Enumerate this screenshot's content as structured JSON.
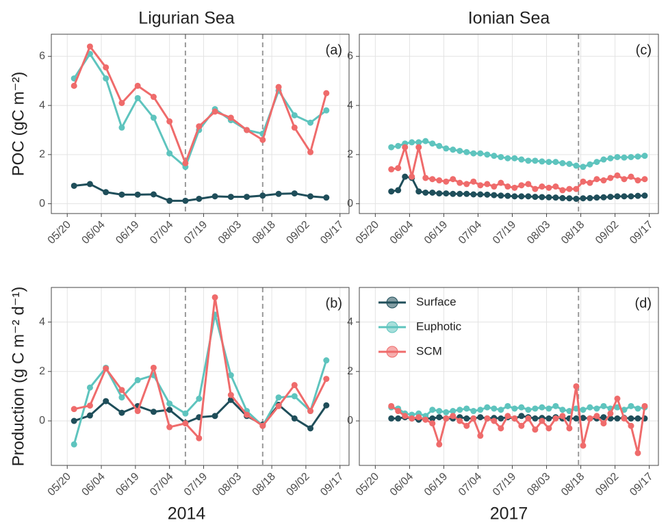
{
  "chart_data": [
    {
      "type": "line",
      "title": "Ligurian Sea",
      "y_label": "POC (gC m⁻²)",
      "panel_label": "(a)",
      "x": [
        "2014-05-23",
        "2014-05-30",
        "2014-06-06",
        "2014-06-13",
        "2014-06-20",
        "2014-06-27",
        "2014-07-04",
        "2014-07-11",
        "2014-07-17",
        "2014-07-24",
        "2014-07-31",
        "2014-08-07",
        "2014-08-14",
        "2014-08-21",
        "2014-08-28",
        "2014-09-04",
        "2014-09-11"
      ],
      "series": [
        {
          "name": "Surface",
          "color": "#1f4e5a",
          "values": [
            0.73,
            0.8,
            0.47,
            0.37,
            0.37,
            0.38,
            0.12,
            0.12,
            0.2,
            0.3,
            0.28,
            0.28,
            0.33,
            0.4,
            0.42,
            0.3,
            0.25
          ]
        },
        {
          "name": "Euphotic",
          "color": "#5ec4be",
          "values": [
            5.1,
            6.1,
            5.1,
            3.1,
            4.3,
            3.5,
            2.05,
            1.5,
            3.0,
            3.85,
            3.4,
            3.0,
            2.85,
            4.6,
            3.6,
            3.3,
            3.8
          ]
        },
        {
          "name": "SCM",
          "color": "#ef6b6b",
          "values": [
            4.8,
            6.4,
            5.55,
            4.1,
            4.8,
            4.35,
            3.35,
            1.65,
            3.15,
            3.75,
            3.5,
            3.0,
            2.6,
            4.75,
            3.1,
            2.1,
            4.5
          ]
        }
      ],
      "event_lines": [
        "2014-07-11",
        "2014-08-14"
      ],
      "xlim": [
        "2014-05-13",
        "2014-09-21"
      ],
      "xticks": [
        {
          "value": "2014-05-20",
          "label": "05/20"
        },
        {
          "value": "2014-06-04",
          "label": "06/04"
        },
        {
          "value": "2014-06-19",
          "label": "06/19"
        },
        {
          "value": "2014-07-04",
          "label": "07/04"
        },
        {
          "value": "2014-07-19",
          "label": "07/19"
        },
        {
          "value": "2014-08-03",
          "label": "08/03"
        },
        {
          "value": "2014-08-18",
          "label": "08/18"
        },
        {
          "value": "2014-09-02",
          "label": "09/02"
        },
        {
          "value": "2014-09-17",
          "label": "09/17"
        }
      ],
      "ylim": [
        -0.4,
        6.9
      ],
      "yticks": [
        0,
        2,
        4,
        6
      ],
      "grid": true
    },
    {
      "type": "line",
      "y_label": "Production (g C m⁻² d⁻¹)",
      "x_label": "2014",
      "panel_label": "(b)",
      "x": [
        "2014-05-23",
        "2014-05-30",
        "2014-06-06",
        "2014-06-13",
        "2014-06-20",
        "2014-06-27",
        "2014-07-04",
        "2014-07-11",
        "2014-07-17",
        "2014-07-24",
        "2014-07-31",
        "2014-08-07",
        "2014-08-14",
        "2014-08-21",
        "2014-08-28",
        "2014-09-04",
        "2014-09-11"
      ],
      "series": [
        {
          "name": "Surface",
          "color": "#1f4e5a",
          "values": [
            0,
            0.22,
            0.8,
            0.33,
            0.6,
            0.37,
            0.45,
            -0.08,
            0.15,
            0.2,
            0.85,
            0.2,
            -0.15,
            0.65,
            0.1,
            -0.3,
            0.63
          ]
        },
        {
          "name": "Euphotic",
          "color": "#5ec4be",
          "values": [
            -0.95,
            1.35,
            2.15,
            0.95,
            1.65,
            1.85,
            0.7,
            0.3,
            0.9,
            4.3,
            1.85,
            0.4,
            -0.2,
            0.95,
            1.0,
            0.4,
            2.45
          ]
        },
        {
          "name": "SCM",
          "color": "#ef6b6b",
          "values": [
            0.48,
            0.62,
            2.12,
            1.25,
            0.4,
            2.15,
            -0.25,
            -0.1,
            -0.7,
            5.0,
            1.05,
            0.25,
            -0.2,
            0.6,
            1.45,
            0.4,
            1.7
          ]
        }
      ],
      "event_lines": [
        "2014-07-11",
        "2014-08-14"
      ],
      "xlim": [
        "2014-05-13",
        "2014-09-21"
      ],
      "xticks": [
        {
          "value": "2014-05-20",
          "label": "05/20"
        },
        {
          "value": "2014-06-04",
          "label": "06/04"
        },
        {
          "value": "2014-06-19",
          "label": "06/19"
        },
        {
          "value": "2014-07-04",
          "label": "07/04"
        },
        {
          "value": "2014-07-19",
          "label": "07/19"
        },
        {
          "value": "2014-08-03",
          "label": "08/03"
        },
        {
          "value": "2014-08-18",
          "label": "08/18"
        },
        {
          "value": "2014-09-02",
          "label": "09/02"
        },
        {
          "value": "2014-09-17",
          "label": "09/17"
        }
      ],
      "ylim": [
        -1.8,
        5.4
      ],
      "yticks": [
        0,
        2,
        4
      ],
      "grid": true
    },
    {
      "type": "line",
      "title": "Ionian Sea",
      "panel_label": "(c)",
      "x": [
        "2017-05-27",
        "2017-05-30",
        "2017-06-02",
        "2017-06-05",
        "2017-06-08",
        "2017-06-11",
        "2017-06-14",
        "2017-06-17",
        "2017-06-20",
        "2017-06-23",
        "2017-06-26",
        "2017-06-29",
        "2017-07-02",
        "2017-07-05",
        "2017-07-08",
        "2017-07-11",
        "2017-07-14",
        "2017-07-17",
        "2017-07-20",
        "2017-07-23",
        "2017-07-26",
        "2017-07-29",
        "2017-08-01",
        "2017-08-04",
        "2017-08-07",
        "2017-08-10",
        "2017-08-13",
        "2017-08-16",
        "2017-08-19",
        "2017-08-22",
        "2017-08-25",
        "2017-08-28",
        "2017-08-31",
        "2017-09-03",
        "2017-09-06",
        "2017-09-09",
        "2017-09-12",
        "2017-09-15"
      ],
      "series": [
        {
          "name": "Surface",
          "color": "#1f4e5a",
          "values": [
            0.5,
            0.55,
            1.1,
            1.05,
            0.5,
            0.45,
            0.45,
            0.42,
            0.42,
            0.4,
            0.4,
            0.4,
            0.38,
            0.38,
            0.37,
            0.35,
            0.33,
            0.32,
            0.3,
            0.3,
            0.3,
            0.28,
            0.27,
            0.26,
            0.25,
            0.23,
            0.22,
            0.2,
            0.22,
            0.23,
            0.25,
            0.26,
            0.28,
            0.3,
            0.3,
            0.3,
            0.32,
            0.33
          ]
        },
        {
          "name": "Euphotic",
          "color": "#5ec4be",
          "values": [
            2.3,
            2.35,
            2.45,
            2.5,
            2.5,
            2.55,
            2.45,
            2.35,
            2.25,
            2.2,
            2.15,
            2.1,
            2.05,
            2.05,
            2.0,
            1.95,
            1.9,
            1.85,
            1.85,
            1.8,
            1.75,
            1.75,
            1.72,
            1.7,
            1.7,
            1.65,
            1.62,
            1.55,
            1.5,
            1.6,
            1.7,
            1.8,
            1.85,
            1.9,
            1.88,
            1.9,
            1.92,
            1.95
          ]
        },
        {
          "name": "SCM",
          "color": "#ef6b6b",
          "values": [
            1.4,
            1.45,
            2.3,
            1.1,
            2.3,
            1.05,
            1.0,
            0.95,
            0.9,
            1.0,
            0.85,
            0.8,
            0.9,
            0.75,
            0.8,
            0.7,
            0.85,
            0.7,
            0.65,
            0.75,
            0.8,
            0.6,
            0.7,
            0.65,
            0.7,
            0.55,
            0.6,
            0.6,
            0.9,
            0.85,
            1.0,
            0.95,
            1.05,
            1.15,
            1.0,
            1.1,
            0.95,
            1.0
          ]
        }
      ],
      "event_lines": [
        "2017-08-17"
      ],
      "xlim": [
        "2017-05-13",
        "2017-09-21"
      ],
      "xticks": [
        {
          "value": "2017-05-20",
          "label": "05/20"
        },
        {
          "value": "2017-06-04",
          "label": "06/04"
        },
        {
          "value": "2017-06-19",
          "label": "06/19"
        },
        {
          "value": "2017-07-04",
          "label": "07/04"
        },
        {
          "value": "2017-07-19",
          "label": "07/19"
        },
        {
          "value": "2017-08-03",
          "label": "08/03"
        },
        {
          "value": "2017-08-18",
          "label": "08/18"
        },
        {
          "value": "2017-09-02",
          "label": "09/02"
        },
        {
          "value": "2017-09-17",
          "label": "09/17"
        }
      ],
      "ylim": [
        -0.4,
        6.9
      ],
      "yticks": [
        0,
        2,
        4,
        6
      ],
      "grid": true
    },
    {
      "type": "line",
      "x_label": "2017",
      "panel_label": "(d)",
      "legend": "top-left",
      "x": [
        "2017-05-27",
        "2017-05-30",
        "2017-06-02",
        "2017-06-05",
        "2017-06-08",
        "2017-06-11",
        "2017-06-14",
        "2017-06-17",
        "2017-06-20",
        "2017-06-23",
        "2017-06-26",
        "2017-06-29",
        "2017-07-02",
        "2017-07-05",
        "2017-07-08",
        "2017-07-11",
        "2017-07-14",
        "2017-07-17",
        "2017-07-20",
        "2017-07-23",
        "2017-07-26",
        "2017-07-29",
        "2017-08-01",
        "2017-08-04",
        "2017-08-07",
        "2017-08-10",
        "2017-08-13",
        "2017-08-16",
        "2017-08-19",
        "2017-08-22",
        "2017-08-25",
        "2017-08-28",
        "2017-08-31",
        "2017-09-03",
        "2017-09-06",
        "2017-09-09",
        "2017-09-12",
        "2017-09-15"
      ],
      "series": [
        {
          "name": "Surface",
          "color": "#1f4e5a",
          "values": [
            0.1,
            0.1,
            0.15,
            0.1,
            0.05,
            0.1,
            0.1,
            0.15,
            0.1,
            0.1,
            0.15,
            0.1,
            0.1,
            0.15,
            0.1,
            0.12,
            0.1,
            0.15,
            0.1,
            0.2,
            0.15,
            0.1,
            0.12,
            0.1,
            0.15,
            0.1,
            0.1,
            0.1,
            0.12,
            0.1,
            0.1,
            0.15,
            0.1,
            0.1,
            0.12,
            0.1,
            0.1,
            0.1
          ]
        },
        {
          "name": "Euphotic",
          "color": "#5ec4be",
          "values": [
            0.55,
            0.5,
            0.3,
            0.25,
            0.3,
            0.2,
            0.45,
            0.4,
            0.35,
            0.4,
            0.45,
            0.5,
            0.4,
            0.45,
            0.55,
            0.5,
            0.45,
            0.6,
            0.5,
            0.55,
            0.45,
            0.5,
            0.55,
            0.5,
            0.6,
            0.45,
            0.4,
            0.5,
            0.45,
            0.55,
            0.5,
            0.6,
            0.5,
            0.55,
            0.45,
            0.6,
            0.5,
            0.55
          ]
        },
        {
          "name": "SCM",
          "color": "#ef6b6b",
          "values": [
            0.6,
            0.4,
            0.2,
            0.1,
            0.15,
            0.05,
            -0.1,
            -0.95,
            0.1,
            0.2,
            0.0,
            -0.2,
            0.1,
            -0.6,
            0.1,
            0.0,
            -0.3,
            0.2,
            0.1,
            -0.2,
            0.1,
            -0.35,
            0.0,
            -0.3,
            0.1,
            0.2,
            -0.3,
            1.4,
            -1.0,
            0.1,
            0.2,
            -0.1,
            0.3,
            0.9,
            0.1,
            -0.2,
            -1.3,
            0.6
          ]
        }
      ],
      "event_lines": [
        "2017-08-17"
      ],
      "xlim": [
        "2017-05-13",
        "2017-09-21"
      ],
      "xticks": [
        {
          "value": "2017-05-20",
          "label": "05/20"
        },
        {
          "value": "2017-06-04",
          "label": "06/04"
        },
        {
          "value": "2017-06-19",
          "label": "06/19"
        },
        {
          "value": "2017-07-04",
          "label": "07/04"
        },
        {
          "value": "2017-07-19",
          "label": "07/19"
        },
        {
          "value": "2017-08-03",
          "label": "08/03"
        },
        {
          "value": "2017-08-18",
          "label": "08/18"
        },
        {
          "value": "2017-09-02",
          "label": "09/02"
        },
        {
          "value": "2017-09-17",
          "label": "09/17"
        }
      ],
      "ylim": [
        -1.8,
        5.4
      ],
      "yticks": [
        0,
        2,
        4
      ],
      "grid": true
    }
  ]
}
